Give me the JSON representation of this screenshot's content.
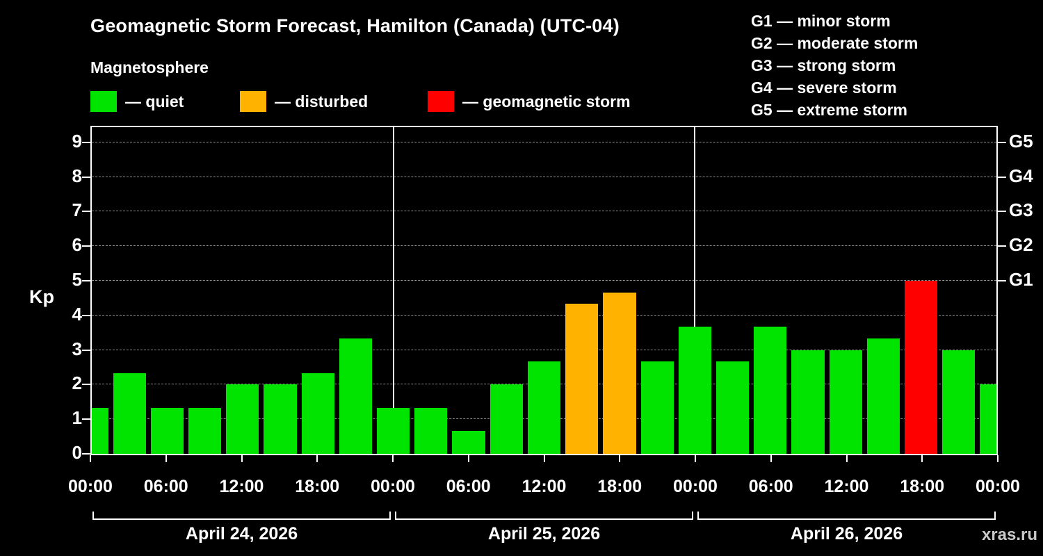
{
  "header": {
    "title": "Geomagnetic Storm Forecast, Hamilton (Canada) (UTC-04)",
    "subtitle": "Magnetosphere"
  },
  "legend": [
    {
      "id": "quiet",
      "label": "— quiet",
      "color": "#00e400"
    },
    {
      "id": "disturbed",
      "label": "— disturbed",
      "color": "#ffb300"
    },
    {
      "id": "storm",
      "label": "— geomagnetic storm",
      "color": "#ff0000"
    }
  ],
  "storm_scale": [
    {
      "label": "G1 — minor storm"
    },
    {
      "label": "G2 — moderate storm"
    },
    {
      "label": "G3 — strong storm"
    },
    {
      "label": "G4 — severe storm"
    },
    {
      "label": "G5 — extreme storm"
    }
  ],
  "watermark": "xras.ru",
  "chart_data": {
    "type": "bar",
    "title": "Geomagnetic Storm Forecast, Hamilton (Canada) (UTC-04)",
    "ylabel": "Kp",
    "ylim": [
      0,
      9.44
    ],
    "yticks": [
      0,
      1,
      2,
      3,
      4,
      5,
      6,
      7,
      8,
      9
    ],
    "grid": true,
    "right_axis": [
      {
        "label": "G1",
        "value": 5
      },
      {
        "label": "G2",
        "value": 6
      },
      {
        "label": "G3",
        "value": 7
      },
      {
        "label": "G4",
        "value": 8
      },
      {
        "label": "G5",
        "value": 9
      }
    ],
    "x_tick_labels": [
      "00:00",
      "06:00",
      "12:00",
      "18:00",
      "00:00",
      "06:00",
      "12:00",
      "18:00",
      "00:00",
      "06:00",
      "12:00",
      "18:00",
      "00:00"
    ],
    "day_labels": [
      "April 24, 2026",
      "April 25, 2026",
      "April 26, 2026"
    ],
    "bin_hours": 3,
    "kp_series": {
      "step_hours": 3,
      "values": [
        1.33,
        2.33,
        1.33,
        1.33,
        2.0,
        2.0,
        2.33,
        3.33,
        1.33,
        1.33,
        0.67,
        2.0,
        2.67,
        4.33,
        4.67,
        2.67,
        3.67,
        2.67,
        3.67,
        3.0,
        3.0,
        3.33,
        5.0,
        3.0,
        2.0
      ],
      "status": [
        "quiet",
        "quiet",
        "quiet",
        "quiet",
        "quiet",
        "quiet",
        "quiet",
        "quiet",
        "quiet",
        "quiet",
        "quiet",
        "quiet",
        "quiet",
        "disturbed",
        "disturbed",
        "quiet",
        "quiet",
        "quiet",
        "quiet",
        "quiet",
        "quiet",
        "quiet",
        "storm",
        "quiet",
        "quiet"
      ]
    }
  }
}
